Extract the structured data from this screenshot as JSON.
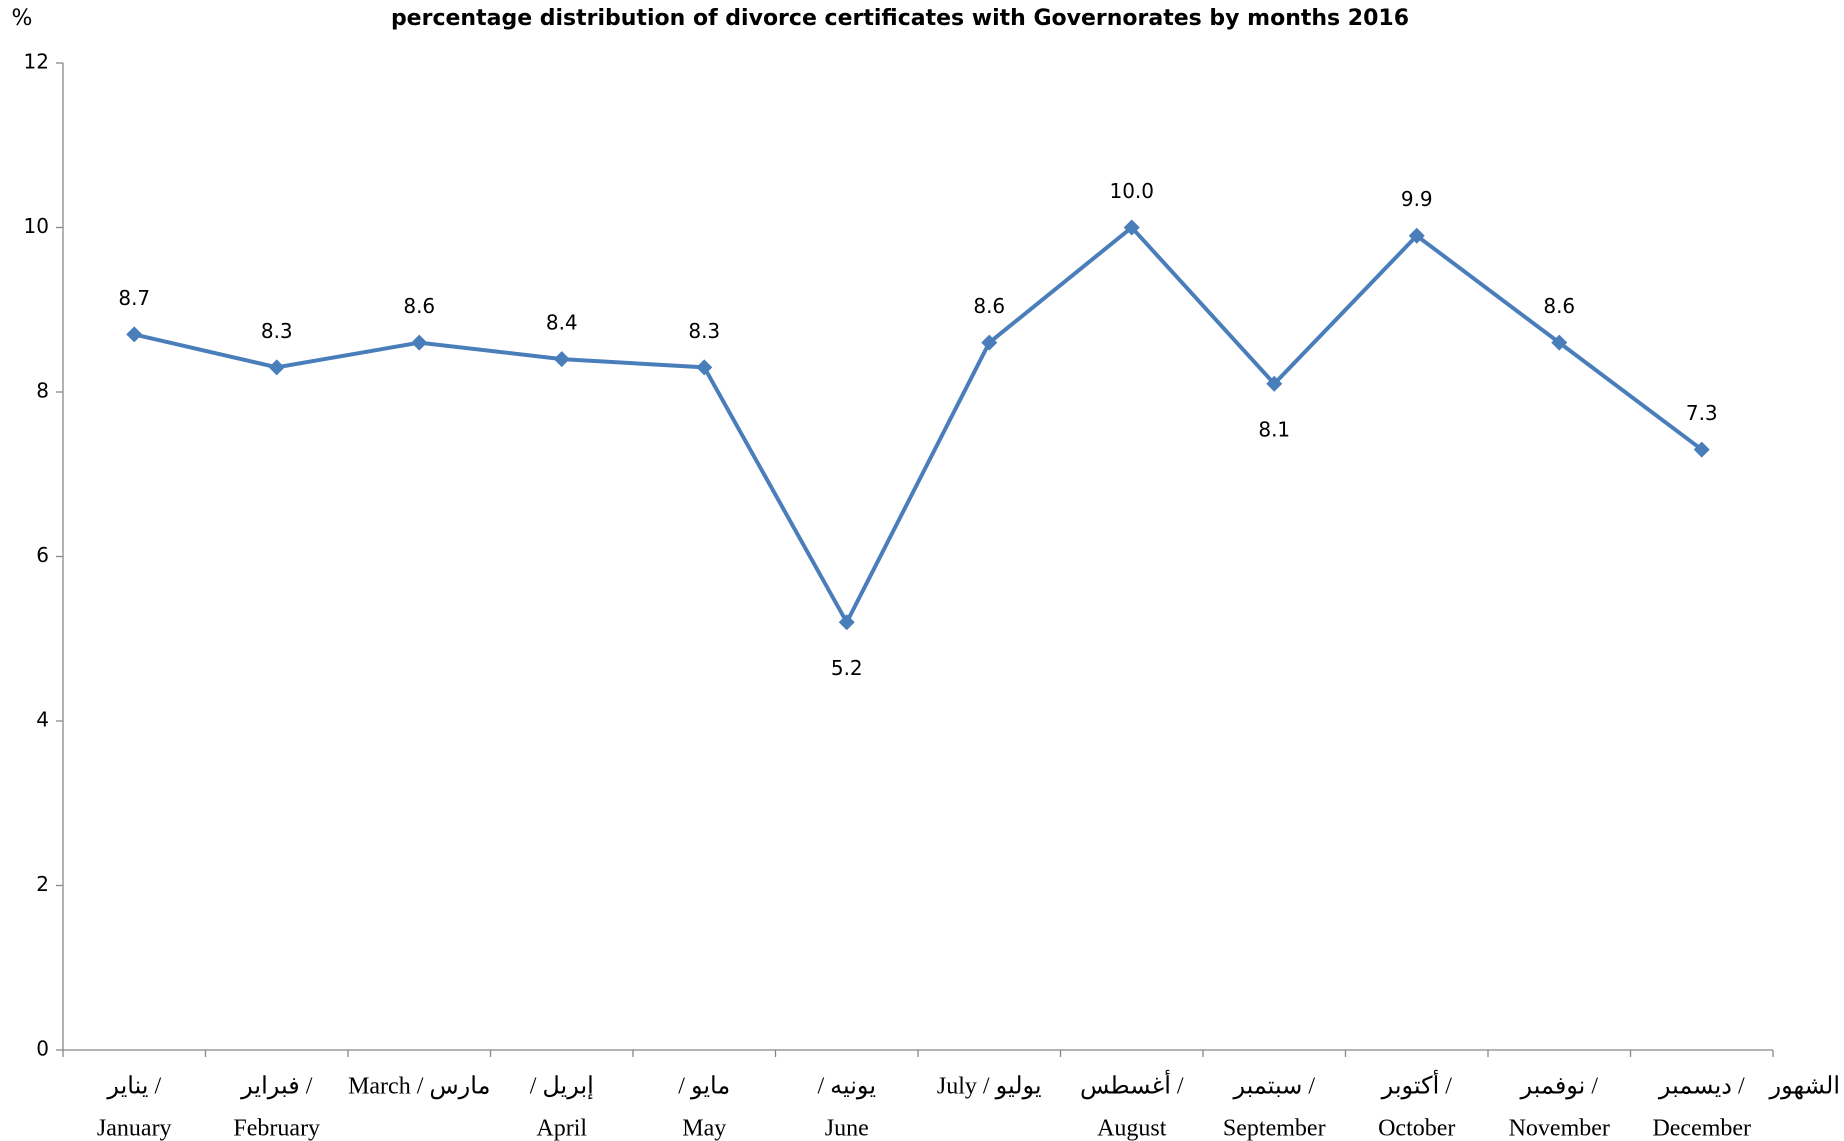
{
  "chart_data": {
    "type": "line",
    "title": "percentage distribution of divorce certificates  with Governorates by  months  2016",
    "y_label": "%",
    "x_label": "الشهور",
    "categories": [
      [
        "يناير  /",
        "January"
      ],
      [
        "فبراير  /",
        "February"
      ],
      [
        "March / مارس"
      ],
      [
        "/     إبريل",
        "April"
      ],
      [
        "/     مايو",
        "May"
      ],
      [
        "/        يونيه",
        "June"
      ],
      [
        "July / يوليو"
      ],
      [
        "أغسطس  /",
        "August"
      ],
      [
        "سبتمبر  /",
        "September"
      ],
      [
        "أكتوبر  /",
        "October"
      ],
      [
        "نوفمبر  /",
        "November"
      ],
      [
        "ديسمبر  /",
        "December"
      ]
    ],
    "series": [
      {
        "name": "percentage",
        "color": "#4a7ebb",
        "values": [
          8.7,
          8.3,
          8.6,
          8.4,
          8.3,
          5.2,
          8.6,
          10.0,
          8.1,
          9.9,
          8.6,
          7.3
        ],
        "value_labels": [
          "8.7",
          "8.3",
          "8.6",
          "8.4",
          "8.3",
          "5.2",
          "8.6",
          "10.0",
          "8.1",
          "9.9",
          "8.6",
          "7.3"
        ]
      }
    ],
    "ylim": [
      0,
      12
    ],
    "yticks": [
      0,
      2,
      4,
      6,
      8,
      10,
      12
    ],
    "grid": false
  }
}
